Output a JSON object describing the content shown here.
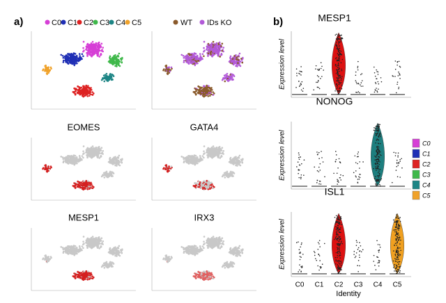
{
  "panel_a": {
    "label": "a)",
    "legend_clusters": [
      {
        "name": "C0",
        "color": "#d63fd6"
      },
      {
        "name": "C1",
        "color": "#1f2fb5"
      },
      {
        "name": "C2",
        "color": "#dd2222"
      },
      {
        "name": "C3",
        "color": "#3fb84a"
      },
      {
        "name": "C4",
        "color": "#1d8585"
      },
      {
        "name": "C5",
        "color": "#f0a22a"
      }
    ],
    "legend_genotype": [
      {
        "name": "WT",
        "color": "#8a5a2b"
      },
      {
        "name": "IDs KO",
        "color": "#b25ad8"
      }
    ],
    "genes": [
      "EOMES",
      "GATA4",
      "MESP1",
      "IRX3"
    ]
  },
  "panel_b": {
    "label": "b)",
    "violins": [
      "MESP1",
      "NONOG",
      "ISL1"
    ],
    "y_label": "Expression level",
    "x_label": "Identity",
    "categories": [
      "C0",
      "C1",
      "C2",
      "C3",
      "C4",
      "C5"
    ]
  }
}
